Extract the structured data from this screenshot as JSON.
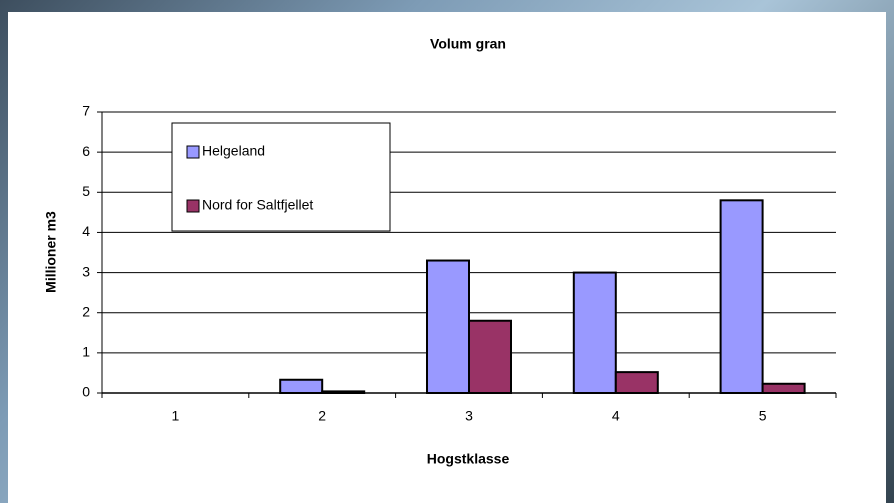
{
  "chart_data": {
    "type": "bar",
    "title": "Volum gran",
    "x_label": "Hogstklasse",
    "y_label": "Millioner m3",
    "categories": [
      "1",
      "2",
      "3",
      "4",
      "5"
    ],
    "series": [
      {
        "name": "Helgeland",
        "color": "#9999ff",
        "values": [
          0,
          0.33,
          3.3,
          3.0,
          4.8
        ]
      },
      {
        "name": "Nord for Saltfjellet",
        "color": "#993366",
        "values": [
          0,
          0.04,
          1.8,
          0.52,
          0.23
        ]
      }
    ],
    "ylim": [
      0,
      7
    ],
    "yticks": [
      0,
      1,
      2,
      3,
      4,
      5,
      6,
      7
    ],
    "grid": true,
    "legend": "upper left"
  }
}
